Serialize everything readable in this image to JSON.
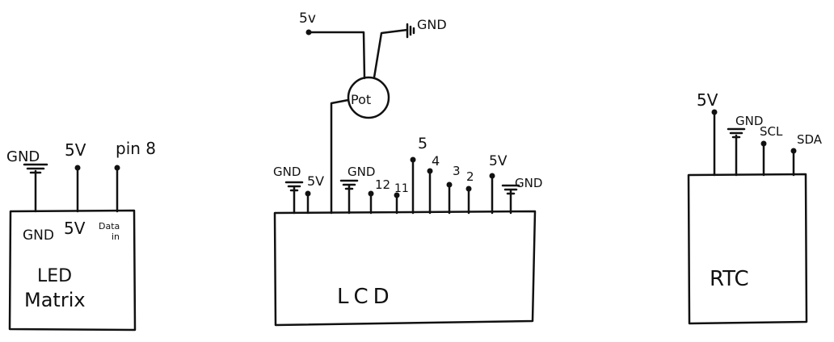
{
  "led_matrix": {
    "title_line1": "LED",
    "title_line2": "Matrix",
    "inner_labels": [
      "GND",
      "5V"
    ],
    "data_in_line1": "Data",
    "data_in_line2": "in",
    "outer_labels": [
      "GND",
      "5V",
      "pin 8"
    ]
  },
  "lcd": {
    "title": "LCD",
    "pin_labels": [
      "GND",
      "5V",
      "GND",
      "12",
      "11",
      "5",
      "4",
      "3",
      "2",
      "5V",
      "GND"
    ],
    "pot_label": "Pot",
    "pot_5v_label": "5v",
    "pot_gnd_label": "GND"
  },
  "rtc": {
    "title": "RTC",
    "pin_labels": [
      "5V",
      "GND",
      "SCL",
      "SDA"
    ]
  }
}
